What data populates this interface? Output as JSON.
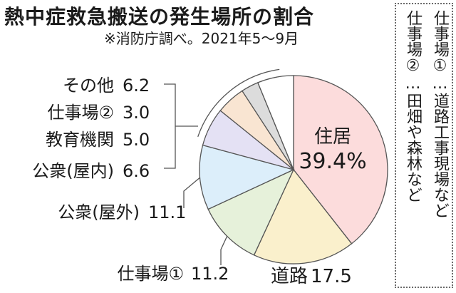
{
  "header": {
    "title": "熱中症救急搬送の発生場所の割合",
    "subtitle": "※消防庁調べ。2021年5～9月"
  },
  "note": {
    "line1": "仕事場①…道路工事現場など",
    "line2": "仕事場②…田畑や森林など"
  },
  "chart_data": {
    "type": "pie",
    "start": "top",
    "direction": "clockwise",
    "slices": [
      {
        "name": "住居",
        "value": 39.4,
        "label": "39.4%",
        "color": "#fcdcdc"
      },
      {
        "name": "道路",
        "value": 17.5,
        "label": "17.5",
        "color": "#faf0cc"
      },
      {
        "name": "仕事場①",
        "value": 11.2,
        "label": "11.2",
        "color": "#e6f1da"
      },
      {
        "name": "公衆(屋外)",
        "value": 11.1,
        "label": "11.1",
        "color": "#dceefa"
      },
      {
        "name": "公衆(屋内)",
        "value": 6.6,
        "label": "6.6",
        "color": "#e4e1f4"
      },
      {
        "name": "教育機関",
        "value": 5.0,
        "label": "5.0",
        "color": "#f9e5d2"
      },
      {
        "name": "仕事場②",
        "value": 3.0,
        "label": "3.0",
        "color": "#dcdcdc"
      },
      {
        "name": "その他",
        "value": 6.2,
        "label": "6.2",
        "color": "#ffffff"
      }
    ]
  }
}
